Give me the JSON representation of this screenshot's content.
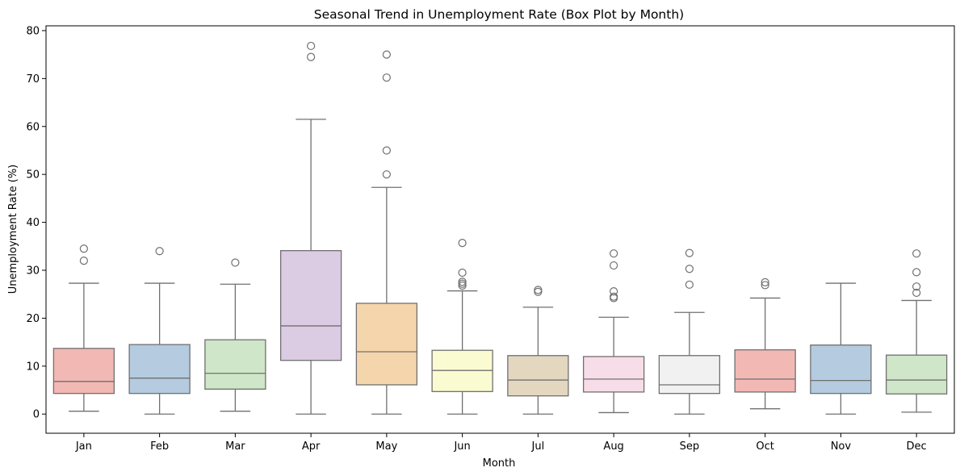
{
  "chart_data": {
    "type": "box",
    "title": "Seasonal Trend in Unemployment Rate (Box Plot by Month)",
    "xlabel": "Month",
    "ylabel": "Unemployment Rate (%)",
    "ylim": [
      -4,
      81
    ],
    "yticks": [
      0,
      10,
      20,
      30,
      40,
      50,
      60,
      70,
      80
    ],
    "grid": false,
    "box_stroke": "#707070",
    "series": [
      {
        "category": "Jan",
        "color": "#f2b8b4",
        "whisker_low": 0.6,
        "q1": 4.3,
        "median": 6.8,
        "q3": 13.7,
        "whisker_high": 27.3,
        "outliers": [
          32.0,
          34.5
        ]
      },
      {
        "category": "Feb",
        "color": "#b4cbe0",
        "whisker_low": 0.0,
        "q1": 4.3,
        "median": 7.5,
        "q3": 14.5,
        "whisker_high": 27.3,
        "outliers": [
          34.0
        ]
      },
      {
        "category": "Mar",
        "color": "#cfe6c8",
        "whisker_low": 0.6,
        "q1": 5.2,
        "median": 8.5,
        "q3": 15.5,
        "whisker_high": 27.1,
        "outliers": [
          31.6
        ]
      },
      {
        "category": "Apr",
        "color": "#dbcbe3",
        "whisker_low": 0.0,
        "q1": 11.2,
        "median": 18.4,
        "q3": 34.1,
        "whisker_high": 61.5,
        "outliers": [
          74.5,
          76.8
        ]
      },
      {
        "category": "May",
        "color": "#f5d5ac",
        "whisker_low": 0.0,
        "q1": 6.1,
        "median": 13.0,
        "q3": 23.1,
        "whisker_high": 47.3,
        "outliers": [
          50.0,
          55.0,
          70.2,
          75.0
        ]
      },
      {
        "category": "Jun",
        "color": "#fbfbd1",
        "whisker_low": 0.0,
        "q1": 4.7,
        "median": 9.1,
        "q3": 13.3,
        "whisker_high": 25.7,
        "outliers": [
          26.8,
          27.2,
          27.6,
          29.5,
          35.7
        ]
      },
      {
        "category": "Jul",
        "color": "#e3d7c0",
        "whisker_low": 0.0,
        "q1": 3.8,
        "median": 7.1,
        "q3": 12.2,
        "whisker_high": 22.3,
        "outliers": [
          25.5,
          25.9
        ]
      },
      {
        "category": "Aug",
        "color": "#f7dde8",
        "whisker_low": 0.3,
        "q1": 4.6,
        "median": 7.3,
        "q3": 12.0,
        "whisker_high": 20.2,
        "outliers": [
          24.2,
          24.5,
          25.6,
          31.0,
          33.5
        ]
      },
      {
        "category": "Sep",
        "color": "#f1f1f1",
        "whisker_low": 0.0,
        "q1": 4.3,
        "median": 6.1,
        "q3": 12.2,
        "whisker_high": 21.2,
        "outliers": [
          27.0,
          30.3,
          33.6
        ]
      },
      {
        "category": "Oct",
        "color": "#f2b8b4",
        "whisker_low": 1.1,
        "q1": 4.6,
        "median": 7.3,
        "q3": 13.4,
        "whisker_high": 24.2,
        "outliers": [
          26.9,
          27.5
        ]
      },
      {
        "category": "Nov",
        "color": "#b4cbe0",
        "whisker_low": 0.0,
        "q1": 4.3,
        "median": 7.0,
        "q3": 14.4,
        "whisker_high": 27.3,
        "outliers": []
      },
      {
        "category": "Dec",
        "color": "#cfe6c8",
        "whisker_low": 0.4,
        "q1": 4.2,
        "median": 7.1,
        "q3": 12.3,
        "whisker_high": 23.7,
        "outliers": [
          25.3,
          26.6,
          29.6,
          33.5
        ]
      }
    ]
  }
}
